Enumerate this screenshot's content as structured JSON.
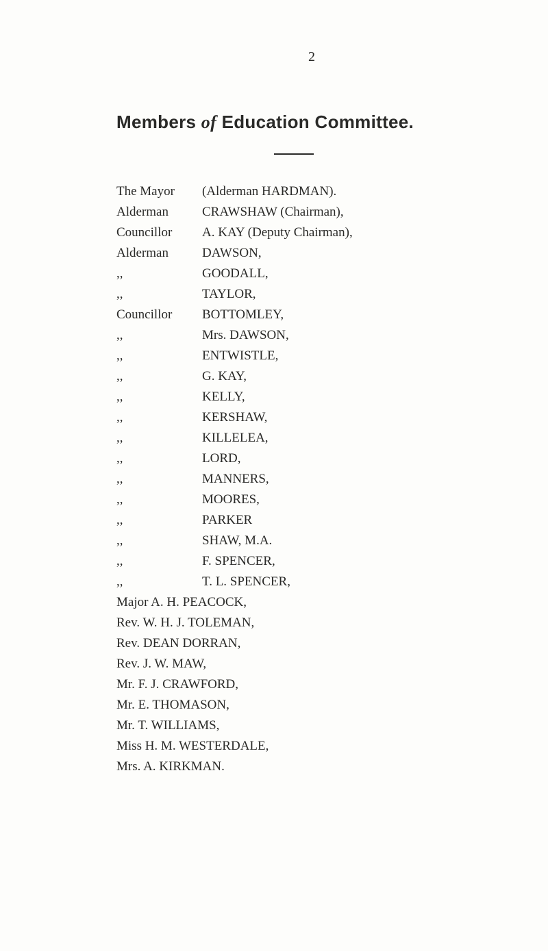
{
  "page_number": "2",
  "title_parts": {
    "a": "Members",
    "b": "of",
    "c": "Education Committee."
  },
  "members": [
    {
      "role": "The Mayor",
      "name": "(Alderman HARDMAN).",
      "ditto": false
    },
    {
      "role": "Alderman",
      "name": "CRAWSHAW  (Chairman),",
      "ditto": false
    },
    {
      "role": "Councillor",
      "name": "A. KAY  (Deputy Chairman),",
      "ditto": false
    },
    {
      "role": "Alderman",
      "name": "DAWSON,",
      "ditto": false
    },
    {
      "role": ",,",
      "name": "GOODALL,",
      "ditto": true
    },
    {
      "role": ",,",
      "name": "TAYLOR,",
      "ditto": true
    },
    {
      "role": "Councillor",
      "name": "BOTTOMLEY,",
      "ditto": false
    },
    {
      "role": ",,",
      "name": "Mrs. DAWSON,",
      "ditto": true
    },
    {
      "role": ",,",
      "name": "ENTWISTLE,",
      "ditto": true
    },
    {
      "role": ",,",
      "name": "G. KAY,",
      "ditto": true
    },
    {
      "role": ",,",
      "name": "KELLY,",
      "ditto": true
    },
    {
      "role": ",,",
      "name": "KERSHAW,",
      "ditto": true
    },
    {
      "role": ",,",
      "name": "KILLELEA,",
      "ditto": true
    },
    {
      "role": ",,",
      "name": "LORD,",
      "ditto": true
    },
    {
      "role": ",,",
      "name": "MANNERS,",
      "ditto": true
    },
    {
      "role": ",,",
      "name": "MOORES,",
      "ditto": true
    },
    {
      "role": ",,",
      "name": "PARKER",
      "ditto": true
    },
    {
      "role": ",,",
      "name": "SHAW, M.A.",
      "ditto": true
    },
    {
      "role": ",,",
      "name": "F. SPENCER,",
      "ditto": true
    },
    {
      "role": ",,",
      "name": "T. L. SPENCER,",
      "ditto": true
    }
  ],
  "fullrows": [
    "Major A. H. PEACOCK,",
    "Rev. W. H. J. TOLEMAN,",
    "Rev. DEAN DORRAN,",
    "Rev. J. W. MAW,",
    "Mr. F. J. CRAWFORD,",
    "Mr. E. THOMASON,",
    "Mr. T. WILLIAMS,",
    "Miss H. M. WESTERDALE,",
    "Mrs. A. KIRKMAN."
  ]
}
